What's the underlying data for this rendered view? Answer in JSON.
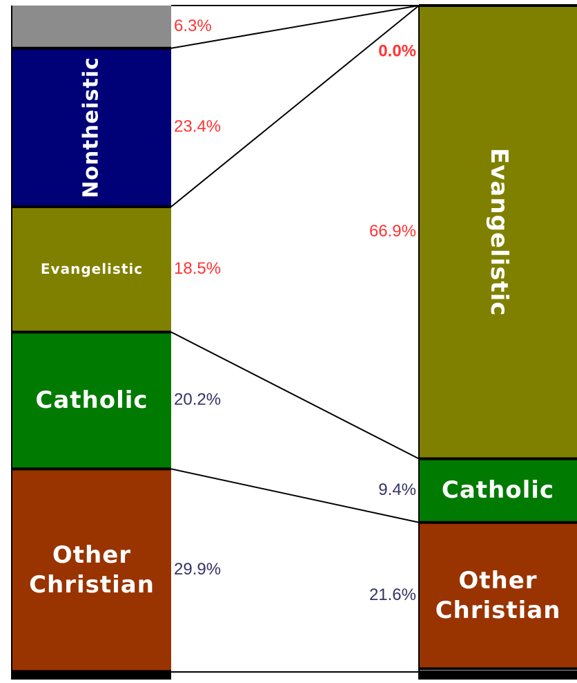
{
  "chart_data": {
    "type": "stacked-comparison",
    "categories": [
      null,
      "Nontheistic",
      "Evangelistic",
      "Catholic",
      "Other Christian"
    ],
    "colors": [
      "#8c8c8c",
      "#000077",
      "#808000",
      "#007a00",
      "#993300"
    ],
    "label_colors": [
      "#ff3333",
      "#ff3333",
      "#ff3333",
      "#333366",
      "#333366"
    ],
    "series": [
      {
        "values": [
          6.3,
          23.4,
          18.5,
          20.2,
          29.9
        ],
        "value_labels": [
          "6.3%",
          "23.4%",
          "18.5%",
          "20.2%",
          "29.9%"
        ]
      },
      {
        "values": [
          null,
          0.0,
          66.9,
          9.4,
          21.6
        ],
        "value_labels": [
          null,
          "0.0%",
          "66.9%",
          "9.4%",
          "21.6%"
        ]
      }
    ]
  }
}
